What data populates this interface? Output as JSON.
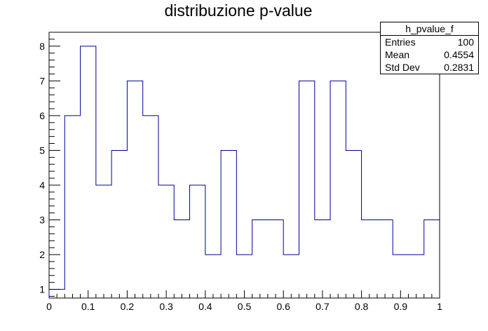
{
  "chart_data": {
    "type": "histogram",
    "title": "distribuzione p-value",
    "xlabel": "",
    "ylabel": "",
    "xlim": [
      0,
      1
    ],
    "ylim": [
      0.75,
      8.4
    ],
    "bin_edges": [
      0,
      0.04,
      0.08,
      0.12,
      0.16,
      0.2,
      0.24,
      0.28,
      0.32,
      0.36,
      0.4,
      0.44,
      0.48,
      0.52,
      0.56,
      0.6,
      0.64,
      0.68,
      0.72,
      0.76,
      0.8,
      0.84,
      0.88,
      0.92,
      0.96,
      1.0
    ],
    "values": [
      1,
      6,
      8,
      4,
      5,
      7,
      6,
      4,
      3,
      4,
      2,
      5,
      2,
      3,
      3,
      2,
      7,
      3,
      7,
      5,
      3,
      3,
      2,
      2,
      3
    ],
    "x_ticks": [
      "0",
      "0.1",
      "0.2",
      "0.3",
      "0.4",
      "0.5",
      "0.6",
      "0.7",
      "0.8",
      "0.9",
      "1"
    ],
    "y_ticks": [
      "1",
      "2",
      "3",
      "4",
      "5",
      "6",
      "7",
      "8"
    ],
    "line_color": "#000099",
    "grid": false,
    "stats": {
      "name": "h_pvalue_f",
      "rows": [
        {
          "label": "Entries",
          "value": "100"
        },
        {
          "label": "Mean",
          "value": "0.4554"
        },
        {
          "label": "Std Dev",
          "value": "0.2831"
        }
      ]
    }
  }
}
